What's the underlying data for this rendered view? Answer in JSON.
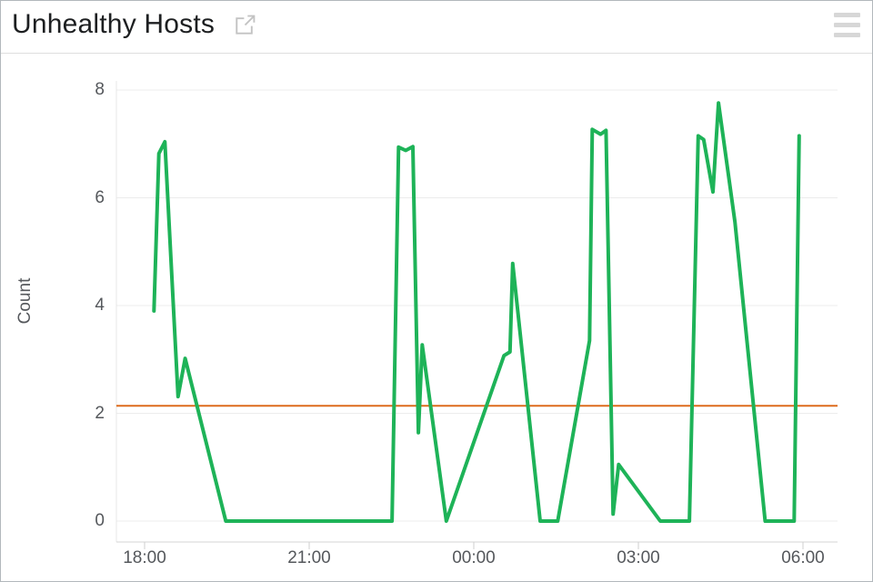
{
  "header": {
    "title": "Unhealthy Hosts",
    "external_link_icon": "open-in-new-window-arrow",
    "menu_icon": "hamburger-three-bars"
  },
  "chart_data": {
    "type": "line",
    "title": "Unhealthy Hosts",
    "xlabel": "",
    "ylabel": "Count",
    "x_unit": "hours after 18:00",
    "x_ticks": [
      "18:00",
      "21:00",
      "00:00",
      "03:00",
      "06:00"
    ],
    "x_tick_hours": [
      0,
      3,
      6,
      9,
      12
    ],
    "y_ticks": [
      0,
      2,
      4,
      6,
      8
    ],
    "ylim": [
      -0.39,
      8.17
    ],
    "xlim_hours": [
      -0.51,
      12.63
    ],
    "grid": "horizontal",
    "legend": "none",
    "line_color": "#1eb358",
    "threshold": {
      "value": 2.14,
      "color": "#dd6b1d"
    },
    "series": [
      {
        "name": "Unhealthy Hosts",
        "color": "#1eb358",
        "points": [
          [
            0.17,
            3.9
          ],
          [
            0.26,
            6.82
          ],
          [
            0.37,
            7.04
          ],
          [
            0.61,
            2.31
          ],
          [
            0.74,
            3.02
          ],
          [
            1.48,
            0.0
          ],
          [
            4.51,
            0.0
          ],
          [
            4.63,
            6.94
          ],
          [
            4.76,
            6.88
          ],
          [
            4.89,
            6.95
          ],
          [
            4.99,
            1.64
          ],
          [
            5.06,
            3.27
          ],
          [
            5.5,
            0.0
          ],
          [
            6.55,
            3.07
          ],
          [
            6.66,
            3.14
          ],
          [
            6.71,
            4.78
          ],
          [
            7.21,
            0.0
          ],
          [
            7.53,
            0.0
          ],
          [
            8.11,
            3.35
          ],
          [
            8.16,
            7.27
          ],
          [
            8.31,
            7.18
          ],
          [
            8.41,
            7.25
          ],
          [
            8.54,
            0.13
          ],
          [
            8.64,
            1.05
          ],
          [
            9.4,
            0.0
          ],
          [
            9.93,
            0.0
          ],
          [
            10.09,
            7.15
          ],
          [
            10.19,
            7.08
          ],
          [
            10.36,
            6.11
          ],
          [
            10.46,
            7.76
          ],
          [
            10.76,
            5.55
          ],
          [
            11.31,
            0.0
          ],
          [
            11.84,
            0.0
          ],
          [
            11.93,
            7.15
          ]
        ]
      }
    ]
  }
}
